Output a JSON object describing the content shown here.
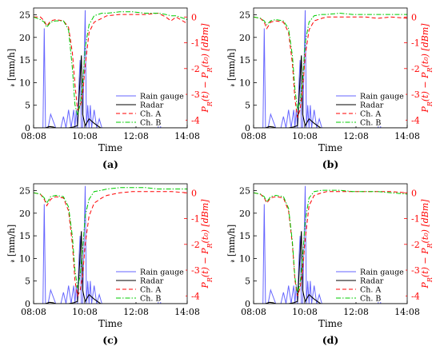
{
  "chart_data": [
    {
      "panel_label": "(a)",
      "type": "line",
      "xlabel": "Time",
      "ylabel_left": "𝓇 [mm/h]",
      "ylabel_right": "P_R(t) − P_R(t₀) [dBm]",
      "x_ticks": [
        "08:08",
        "10:08",
        "12:08",
        "14:08"
      ],
      "x_range_hours": [
        8.133,
        14.133
      ],
      "ylim_left": [
        0,
        26.5
      ],
      "yticks_left": [
        0,
        5,
        10,
        15,
        20,
        25
      ],
      "ylim_right": [
        -4.3,
        0.35
      ],
      "yticks_right": [
        -4,
        -3,
        -2,
        -1,
        0
      ],
      "legend_position": "lower-right",
      "series": [
        {
          "name": "Rain gauge",
          "axis": "left",
          "color": "#6666ff",
          "style": "solid",
          "x": [
            8.133,
            8.5,
            8.55,
            8.6,
            8.7,
            8.8,
            9.0,
            9.2,
            9.3,
            9.4,
            9.5,
            9.6,
            9.7,
            9.75,
            9.8,
            9.85,
            9.9,
            9.95,
            10.0,
            10.05,
            10.1,
            10.15,
            10.2,
            10.25,
            10.3,
            10.35,
            10.4,
            10.5,
            10.6,
            10.7,
            10.8,
            11.0,
            13.0,
            13.05,
            13.1,
            13.2,
            14.133
          ],
          "y": [
            0,
            0,
            22,
            0,
            0,
            3,
            0,
            0,
            2.5,
            0,
            4,
            0,
            4,
            0,
            4,
            0,
            9,
            15,
            0,
            0,
            12,
            26,
            0,
            5,
            0,
            5,
            0,
            4,
            0,
            2,
            0,
            0,
            0,
            3,
            0,
            0,
            0
          ]
        },
        {
          "name": "Radar",
          "axis": "left",
          "color": "#000000",
          "style": "solid",
          "x": [
            8.133,
            8.6,
            8.75,
            8.9,
            9.0,
            9.5,
            9.7,
            9.85,
            10.0,
            10.05,
            10.15,
            10.3,
            10.5,
            10.75,
            14.133
          ],
          "y": [
            0,
            0,
            0.3,
            0.2,
            0,
            0,
            0.2,
            0.5,
            16,
            3,
            0.5,
            2,
            1,
            0,
            0
          ]
        },
        {
          "name": "Ch. A",
          "axis": "right",
          "color": "#ff0000",
          "style": "dashed",
          "x": [
            8.133,
            8.4,
            8.55,
            8.65,
            8.8,
            9.0,
            9.3,
            9.5,
            9.65,
            9.75,
            9.85,
            9.95,
            10.05,
            10.15,
            10.3,
            10.5,
            10.8,
            11.0,
            11.5,
            12.0,
            12.5,
            13.0,
            13.3,
            13.5,
            13.7,
            14.133
          ],
          "y": [
            0,
            0,
            -0.15,
            -0.35,
            -0.15,
            -0.1,
            -0.15,
            -0.4,
            -1.4,
            -2.6,
            -3.6,
            -3.5,
            -3.0,
            -1.9,
            -0.6,
            -0.2,
            -0.05,
            0.05,
            0.1,
            0.1,
            0.1,
            0.15,
            0.0,
            -0.15,
            0.0,
            -0.25
          ]
        },
        {
          "name": "Ch. B",
          "axis": "right",
          "color": "#00cc00",
          "style": "dashdot",
          "x": [
            8.133,
            8.4,
            8.55,
            8.65,
            8.8,
            9.0,
            9.3,
            9.5,
            9.65,
            9.75,
            9.85,
            9.95,
            10.05,
            10.15,
            10.3,
            10.5,
            10.8,
            11.0,
            11.5,
            12.0,
            12.5,
            13.0,
            13.3,
            13.5,
            13.7,
            14.133
          ],
          "y": [
            0,
            -0.1,
            -0.2,
            -0.4,
            -0.2,
            -0.15,
            -0.15,
            -0.5,
            -2.0,
            -3.4,
            -3.8,
            -3.4,
            -2.6,
            -1.2,
            -0.3,
            0.05,
            0.15,
            0.15,
            0.2,
            0.2,
            0.15,
            0.15,
            0.1,
            0.05,
            0.05,
            -0.1
          ]
        }
      ]
    },
    {
      "panel_label": "(b)",
      "type": "line",
      "xlabel": "Time",
      "ylabel_left": "𝓇 [mm/h]",
      "ylabel_right": "P_R(t) − P_R(t₀) [dBm]",
      "x_ticks": [
        "08:08",
        "10:08",
        "12:08",
        "14:08"
      ],
      "x_range_hours": [
        8.133,
        14.133
      ],
      "ylim_left": [
        0,
        26.5
      ],
      "yticks_left": [
        0,
        5,
        10,
        15,
        20,
        25
      ],
      "ylim_right": [
        -4.3,
        0.35
      ],
      "yticks_right": [
        -4,
        -3,
        -2,
        -1,
        0
      ],
      "legend_position": "lower-right",
      "series": [
        {
          "name": "Rain gauge",
          "axis": "left",
          "color": "#6666ff",
          "style": "solid",
          "x": [
            8.133,
            8.5,
            8.55,
            8.6,
            8.7,
            8.8,
            9.0,
            9.2,
            9.3,
            9.4,
            9.5,
            9.6,
            9.7,
            9.75,
            9.8,
            9.85,
            9.9,
            9.95,
            10.0,
            10.05,
            10.1,
            10.15,
            10.2,
            10.25,
            10.3,
            10.35,
            10.4,
            10.5,
            10.6,
            10.7,
            10.8,
            11.0,
            13.0,
            13.05,
            13.1,
            13.2,
            14.133
          ],
          "y": [
            0,
            0,
            22,
            0,
            0,
            3,
            0,
            0,
            2.5,
            0,
            4,
            0,
            4,
            0,
            4,
            0,
            9,
            15,
            0,
            0,
            12,
            26,
            0,
            5,
            0,
            5,
            0,
            4,
            0,
            2,
            0,
            0,
            0,
            3,
            0,
            0,
            0
          ]
        },
        {
          "name": "Radar",
          "axis": "left",
          "color": "#000000",
          "style": "solid",
          "x": [
            8.133,
            8.6,
            8.75,
            8.9,
            9.0,
            9.5,
            9.7,
            9.85,
            10.0,
            10.05,
            10.15,
            10.3,
            10.5,
            10.75,
            14.133
          ],
          "y": [
            0,
            0,
            0.3,
            0.2,
            0,
            0,
            0.2,
            0.5,
            16,
            3,
            0.5,
            2,
            1,
            0,
            0
          ]
        },
        {
          "name": "Ch. A",
          "axis": "right",
          "color": "#ff0000",
          "style": "dashed",
          "x": [
            8.133,
            8.4,
            8.55,
            8.65,
            8.8,
            9.0,
            9.3,
            9.5,
            9.65,
            9.75,
            9.85,
            9.95,
            10.05,
            10.15,
            10.3,
            10.5,
            10.8,
            11.0,
            11.5,
            12.0,
            12.5,
            13.0,
            13.5,
            14.133
          ],
          "y": [
            0,
            -0.05,
            -0.2,
            -0.45,
            -0.2,
            -0.15,
            -0.2,
            -0.6,
            -1.8,
            -3.2,
            -3.9,
            -3.6,
            -2.8,
            -1.5,
            -0.5,
            -0.15,
            -0.05,
            0,
            0,
            0,
            0,
            -0.05,
            0,
            -0.05
          ]
        },
        {
          "name": "Ch. B",
          "axis": "right",
          "color": "#00cc00",
          "style": "dashdot",
          "x": [
            8.133,
            8.4,
            8.55,
            8.65,
            8.8,
            9.0,
            9.3,
            9.5,
            9.65,
            9.75,
            9.85,
            9.95,
            10.05,
            10.15,
            10.3,
            10.5,
            10.8,
            11.0,
            11.5,
            12.0,
            12.5,
            13.0,
            13.5,
            14.133
          ],
          "y": [
            0,
            -0.05,
            -0.15,
            -0.3,
            -0.15,
            -0.1,
            -0.15,
            -0.45,
            -1.5,
            -2.8,
            -3.6,
            -3.3,
            -2.4,
            -1.0,
            -0.2,
            0.05,
            0.1,
            0.1,
            0.15,
            0.1,
            0.1,
            0.1,
            0.1,
            0.1
          ]
        }
      ]
    },
    {
      "panel_label": "(c)",
      "type": "line",
      "xlabel": "Time",
      "ylabel_left": "𝓇 [mm/h]",
      "ylabel_right": "P_R(t) − P_R(t₀) [dBm]",
      "x_ticks": [
        "08:08",
        "10:08",
        "12:08",
        "14:08"
      ],
      "x_range_hours": [
        8.133,
        14.133
      ],
      "ylim_left": [
        0,
        26.5
      ],
      "yticks_left": [
        0,
        5,
        10,
        15,
        20,
        25
      ],
      "ylim_right": [
        -4.3,
        0.35
      ],
      "yticks_right": [
        -4,
        -3,
        -2,
        -1,
        0
      ],
      "legend_position": "lower-right",
      "series": [
        {
          "name": "Rain gauge",
          "axis": "left",
          "color": "#6666ff",
          "style": "solid",
          "x": [
            8.133,
            8.5,
            8.55,
            8.6,
            8.7,
            8.8,
            9.0,
            9.2,
            9.3,
            9.4,
            9.5,
            9.6,
            9.7,
            9.75,
            9.8,
            9.85,
            9.9,
            9.95,
            10.0,
            10.05,
            10.1,
            10.15,
            10.2,
            10.25,
            10.3,
            10.35,
            10.4,
            10.5,
            10.6,
            10.7,
            10.8,
            11.0,
            13.0,
            13.05,
            13.1,
            13.2,
            14.133
          ],
          "y": [
            0,
            0,
            22,
            0,
            0,
            3,
            0,
            0,
            2.5,
            0,
            4,
            0,
            4,
            0,
            4,
            0,
            9,
            15,
            0,
            0,
            12,
            26,
            0,
            5,
            0,
            5,
            0,
            4,
            0,
            2,
            0,
            0,
            0,
            3,
            0,
            0,
            0
          ]
        },
        {
          "name": "Radar",
          "axis": "left",
          "color": "#000000",
          "style": "solid",
          "x": [
            8.133,
            8.6,
            8.75,
            8.9,
            9.0,
            9.5,
            9.7,
            9.85,
            10.0,
            10.05,
            10.15,
            10.3,
            10.5,
            10.75,
            14.133
          ],
          "y": [
            0,
            0,
            0.3,
            0.2,
            0,
            0,
            0.2,
            0.5,
            16,
            3,
            0.5,
            2,
            1,
            0,
            0
          ]
        },
        {
          "name": "Ch. A",
          "axis": "right",
          "color": "#ff0000",
          "style": "dashed",
          "x": [
            8.133,
            8.4,
            8.55,
            8.65,
            8.8,
            9.0,
            9.3,
            9.5,
            9.65,
            9.75,
            9.85,
            9.95,
            10.05,
            10.15,
            10.3,
            10.5,
            10.8,
            11.0,
            11.5,
            12.0,
            12.5,
            13.0,
            13.5,
            14.133
          ],
          "y": [
            0,
            -0.05,
            -0.25,
            -0.5,
            -0.25,
            -0.15,
            -0.2,
            -0.7,
            -2.0,
            -3.4,
            -4.0,
            -3.8,
            -3.2,
            -2.0,
            -0.9,
            -0.4,
            -0.2,
            -0.1,
            0,
            0.05,
            0.05,
            0.05,
            0.05,
            0
          ]
        },
        {
          "name": "Ch. B",
          "axis": "right",
          "color": "#00cc00",
          "style": "dashdot",
          "x": [
            8.133,
            8.4,
            8.55,
            8.65,
            8.8,
            9.0,
            9.3,
            9.5,
            9.65,
            9.75,
            9.85,
            9.95,
            10.05,
            10.15,
            10.3,
            10.5,
            10.8,
            11.0,
            11.5,
            12.0,
            12.5,
            13.0,
            13.5,
            14.133
          ],
          "y": [
            0,
            -0.05,
            -0.2,
            -0.4,
            -0.15,
            -0.1,
            -0.15,
            -0.55,
            -1.7,
            -3.0,
            -3.7,
            -3.2,
            -2.2,
            -0.9,
            -0.25,
            0.05,
            0.1,
            0.15,
            0.2,
            0.2,
            0.2,
            0.15,
            0.15,
            0.15
          ]
        }
      ]
    },
    {
      "panel_label": "(d)",
      "type": "line",
      "xlabel": "Time",
      "ylabel_left": "𝓇 [mm/h]",
      "ylabel_right": "P_R(t) − P_R(t₀) [dBm]",
      "x_ticks": [
        "08:08",
        "10:08",
        "12:08",
        "14:08"
      ],
      "x_range_hours": [
        8.133,
        14.133
      ],
      "ylim_left": [
        0,
        26.5
      ],
      "yticks_left": [
        0,
        5,
        10,
        15,
        20,
        25
      ],
      "ylim_right": [
        -4.3,
        0.35
      ],
      "yticks_right": [
        -4,
        -3,
        -2,
        -1,
        0
      ],
      "legend_position": "lower-right",
      "series": [
        {
          "name": "Rain gauge",
          "axis": "left",
          "color": "#6666ff",
          "style": "solid",
          "x": [
            8.133,
            8.5,
            8.55,
            8.6,
            8.7,
            8.8,
            9.0,
            9.2,
            9.3,
            9.4,
            9.5,
            9.6,
            9.7,
            9.75,
            9.8,
            9.85,
            9.9,
            9.95,
            10.0,
            10.05,
            10.1,
            10.15,
            10.2,
            10.25,
            10.3,
            10.35,
            10.4,
            10.5,
            10.6,
            10.7,
            10.8,
            11.0,
            13.0,
            13.05,
            13.1,
            13.2,
            14.133
          ],
          "y": [
            0,
            0,
            22,
            0,
            0,
            3,
            0,
            0,
            2.5,
            0,
            4,
            0,
            4,
            0,
            4,
            0,
            9,
            15,
            0,
            0,
            12,
            26,
            0,
            5,
            0,
            5,
            0,
            4,
            0,
            2,
            0,
            0,
            0,
            3,
            0,
            0,
            0
          ]
        },
        {
          "name": "Radar",
          "axis": "left",
          "color": "#000000",
          "style": "solid",
          "x": [
            8.133,
            8.6,
            8.75,
            8.9,
            9.0,
            9.5,
            9.7,
            9.85,
            10.0,
            10.05,
            10.15,
            10.3,
            10.5,
            10.75,
            14.133
          ],
          "y": [
            0,
            0,
            0.3,
            0.2,
            0,
            0,
            0.2,
            0.5,
            16,
            3,
            0.5,
            2,
            1,
            0,
            0
          ]
        },
        {
          "name": "Ch. A",
          "axis": "right",
          "color": "#ff0000",
          "style": "dashed",
          "x": [
            8.133,
            8.4,
            8.55,
            8.65,
            8.8,
            9.0,
            9.3,
            9.5,
            9.65,
            9.75,
            9.85,
            9.95,
            10.05,
            10.15,
            10.3,
            10.5,
            10.8,
            11.0,
            11.5,
            12.0,
            12.5,
            13.0,
            13.5,
            14.133
          ],
          "y": [
            0,
            -0.05,
            -0.2,
            -0.4,
            -0.2,
            -0.15,
            -0.2,
            -0.7,
            -2.0,
            -3.4,
            -4.0,
            -3.7,
            -3.0,
            -1.8,
            -0.5,
            -0.1,
            0,
            0.05,
            0.05,
            0.05,
            0.05,
            0.05,
            0.05,
            0
          ]
        },
        {
          "name": "Ch. B",
          "axis": "right",
          "color": "#00cc00",
          "style": "dashdot",
          "x": [
            8.133,
            8.4,
            8.55,
            8.65,
            8.8,
            9.0,
            9.3,
            9.5,
            9.65,
            9.75,
            9.85,
            9.95,
            10.05,
            10.15,
            10.3,
            10.5,
            10.8,
            11.0,
            11.5,
            12.0,
            12.5,
            13.0,
            13.5,
            14.133
          ],
          "y": [
            0,
            -0.05,
            -0.15,
            -0.35,
            -0.15,
            -0.1,
            -0.15,
            -0.6,
            -1.9,
            -3.3,
            -3.9,
            -3.5,
            -2.5,
            -1.1,
            -0.2,
            0.05,
            0.1,
            0.1,
            0.1,
            0.05,
            0.05,
            0.05,
            0.0,
            -0.05
          ]
        }
      ]
    }
  ]
}
